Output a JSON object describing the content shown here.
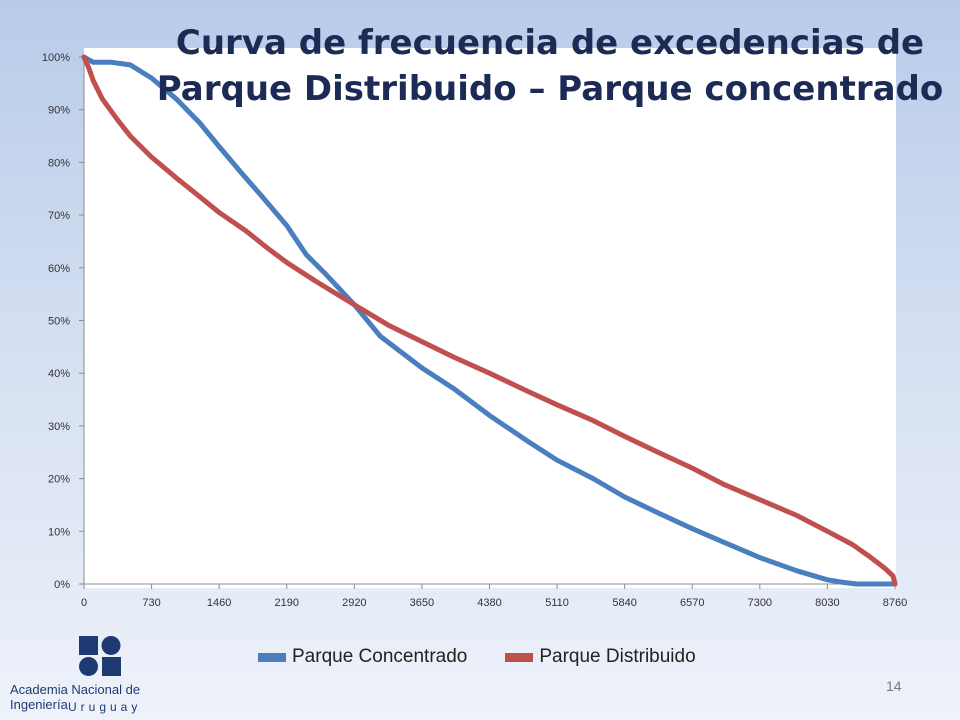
{
  "slide": {
    "title": "Curva de frecuencia de excedencias de Parque Distribuido – Parque concentrado",
    "page_number": "14"
  },
  "logo": {
    "name": "Academia Nacional de Ingeniería",
    "country": "Uruguay"
  },
  "chart_data": {
    "type": "line",
    "title": "",
    "xlabel": "",
    "ylabel": "",
    "xlim": [
      0,
      8760
    ],
    "ylim": [
      0,
      100
    ],
    "x_ticks": [
      0,
      730,
      1460,
      2190,
      2920,
      3650,
      4380,
      5110,
      5840,
      6570,
      7300,
      8030,
      8760
    ],
    "y_ticks": [
      0,
      10,
      20,
      30,
      40,
      50,
      60,
      70,
      80,
      90,
      100
    ],
    "y_tick_format": "percent",
    "grid": false,
    "legend": "bottom",
    "series": [
      {
        "name": "Parque Concentrado",
        "color": "#4a7ebf",
        "x": [
          0,
          100,
          300,
          500,
          730,
          1000,
          1250,
          1460,
          1700,
          1900,
          2190,
          2400,
          2600,
          2920,
          3200,
          3650,
          4000,
          4380,
          4800,
          5110,
          5500,
          5840,
          6200,
          6570,
          6900,
          7300,
          7700,
          8030,
          8200,
          8350,
          8500,
          8760
        ],
        "values": [
          100,
          99,
          99,
          98.5,
          96,
          92,
          87.5,
          83,
          78,
          74,
          68,
          62.5,
          59,
          53,
          47,
          41,
          37,
          32,
          27,
          23.5,
          20,
          16.5,
          13.5,
          10.5,
          8,
          5,
          2.5,
          0.8,
          0.3,
          0,
          0,
          0
        ]
      },
      {
        "name": "Parque Distribuido",
        "color": "#c0504d",
        "x": [
          0,
          50,
          100,
          200,
          365,
          500,
          730,
          1000,
          1250,
          1460,
          1750,
          2000,
          2190,
          2500,
          2920,
          3300,
          3650,
          4000,
          4380,
          4800,
          5110,
          5500,
          5840,
          6200,
          6570,
          6900,
          7300,
          7700,
          8030,
          8300,
          8500,
          8650,
          8740,
          8760
        ],
        "values": [
          100,
          98,
          95.5,
          92,
          88,
          85,
          81,
          77,
          73.5,
          70.5,
          67,
          63.5,
          61,
          57.5,
          53,
          49,
          46,
          43,
          40,
          36.5,
          34,
          31,
          28,
          25,
          22,
          19,
          16,
          13,
          10,
          7.5,
          5,
          3,
          1.5,
          0
        ]
      }
    ]
  }
}
